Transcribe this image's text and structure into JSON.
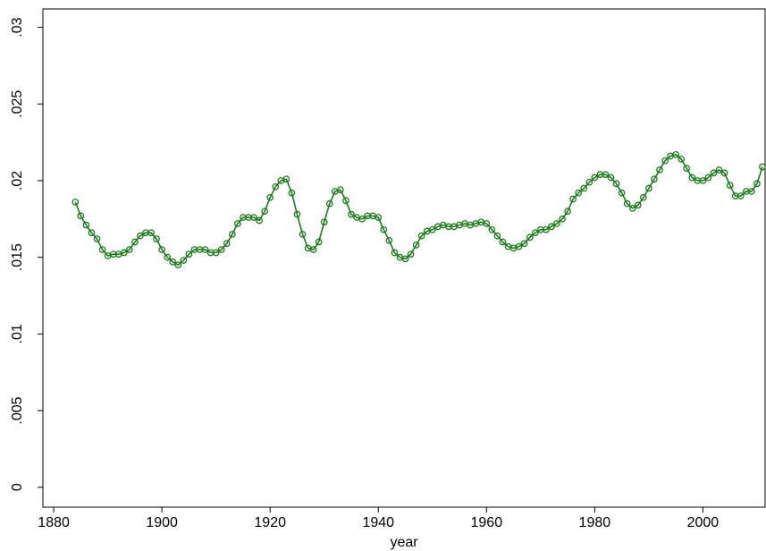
{
  "chart_data": {
    "type": "line",
    "xlabel": "year",
    "x": [
      1884,
      1885,
      1886,
      1887,
      1888,
      1889,
      1890,
      1891,
      1892,
      1893,
      1894,
      1895,
      1896,
      1897,
      1898,
      1899,
      1900,
      1901,
      1902,
      1903,
      1904,
      1905,
      1906,
      1907,
      1908,
      1909,
      1910,
      1911,
      1912,
      1913,
      1914,
      1915,
      1916,
      1917,
      1918,
      1919,
      1920,
      1921,
      1922,
      1923,
      1924,
      1925,
      1926,
      1927,
      1928,
      1929,
      1930,
      1931,
      1932,
      1933,
      1934,
      1935,
      1936,
      1937,
      1938,
      1939,
      1940,
      1941,
      1942,
      1943,
      1944,
      1945,
      1946,
      1947,
      1948,
      1949,
      1950,
      1951,
      1952,
      1953,
      1954,
      1955,
      1956,
      1957,
      1958,
      1959,
      1960,
      1961,
      1962,
      1963,
      1964,
      1965,
      1966,
      1967,
      1968,
      1969,
      1970,
      1971,
      1972,
      1973,
      1974,
      1975,
      1976,
      1977,
      1978,
      1979,
      1980,
      1981,
      1982,
      1983,
      1984,
      1985,
      1986,
      1987,
      1988,
      1989,
      1990,
      1991,
      1992,
      1993,
      1994,
      1995,
      1996,
      1997,
      1998,
      1999,
      2000,
      2001,
      2002,
      2003,
      2004,
      2005,
      2006,
      2007,
      2008,
      2009,
      2010,
      2011
    ],
    "series": [
      {
        "color": "#1a7a1a",
        "values": [
          0.0186,
          0.0177,
          0.0171,
          0.0166,
          0.0162,
          0.0155,
          0.0151,
          0.0152,
          0.0152,
          0.0153,
          0.0155,
          0.016,
          0.0164,
          0.0166,
          0.0166,
          0.0162,
          0.0155,
          0.015,
          0.0147,
          0.0145,
          0.0148,
          0.0152,
          0.0155,
          0.0155,
          0.0155,
          0.0153,
          0.0153,
          0.0155,
          0.0159,
          0.0165,
          0.0172,
          0.0176,
          0.0176,
          0.0176,
          0.0174,
          0.018,
          0.0189,
          0.0196,
          0.02,
          0.0201,
          0.0192,
          0.0178,
          0.0165,
          0.0156,
          0.0155,
          0.016,
          0.0173,
          0.0185,
          0.0193,
          0.0194,
          0.0187,
          0.0178,
          0.0176,
          0.0175,
          0.0177,
          0.0177,
          0.0176,
          0.0168,
          0.0161,
          0.0153,
          0.015,
          0.0149,
          0.0152,
          0.0158,
          0.0164,
          0.0167,
          0.0168,
          0.017,
          0.0171,
          0.017,
          0.017,
          0.0171,
          0.0172,
          0.0171,
          0.0172,
          0.0173,
          0.0172,
          0.0168,
          0.0164,
          0.016,
          0.0157,
          0.0156,
          0.0157,
          0.0159,
          0.0163,
          0.0166,
          0.0168,
          0.0168,
          0.017,
          0.0172,
          0.0175,
          0.018,
          0.0188,
          0.0192,
          0.0195,
          0.0199,
          0.0202,
          0.0204,
          0.0204,
          0.0202,
          0.0198,
          0.0192,
          0.0185,
          0.0182,
          0.0184,
          0.0189,
          0.0195,
          0.0201,
          0.0207,
          0.0213,
          0.0216,
          0.0217,
          0.0214,
          0.0208,
          0.0202,
          0.02,
          0.02,
          0.0202,
          0.0205,
          0.0207,
          0.0205,
          0.0197,
          0.019,
          0.019,
          0.0193,
          0.0193,
          0.0198,
          0.0209
        ]
      }
    ],
    "xlim": [
      1878,
      2011.5
    ],
    "xticks": [
      1880,
      1900,
      1920,
      1940,
      1960,
      1980,
      2000
    ],
    "ylim": [
      -0.0013,
      0.0312
    ],
    "yticks": [
      0,
      {
        "value": 0.005,
        "label": ".005"
      },
      {
        "value": 0.01,
        "label": ".01"
      },
      {
        "value": 0.015,
        "label": ".015"
      },
      {
        "value": 0.02,
        "label": ".02"
      },
      {
        "value": 0.025,
        "label": ".025"
      },
      {
        "value": 0.03,
        "label": ".03"
      }
    ]
  }
}
